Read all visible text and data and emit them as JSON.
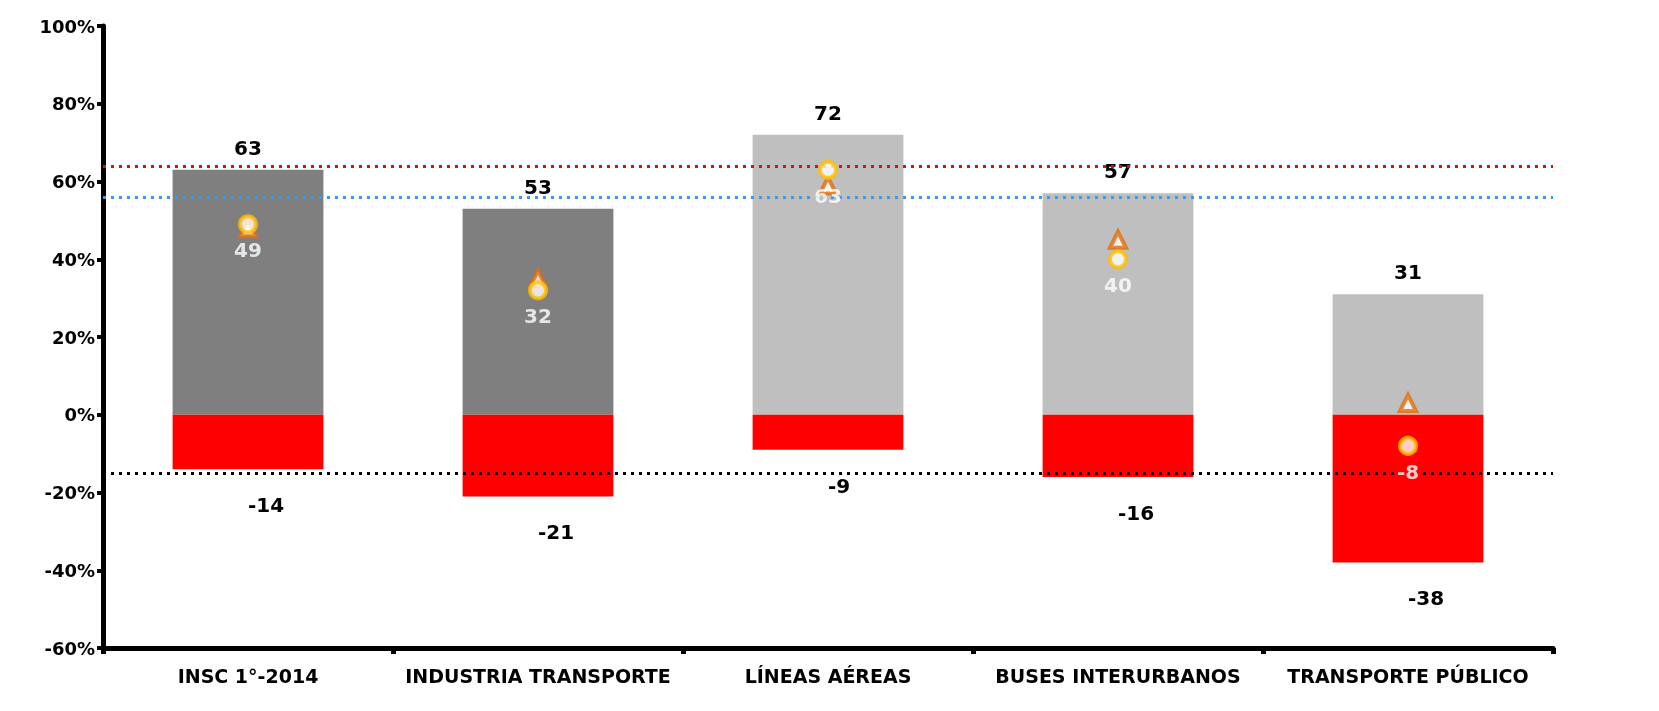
{
  "chart_data": {
    "type": "bar",
    "stacked": true,
    "categories": [
      "INSC 1°-2014",
      "INDUSTRIA TRANSPORTE",
      "LÍNEAS AÉREAS",
      "BUSES INTERURBANOS",
      "TRANSPORTE PÚBLICO"
    ],
    "series": [
      {
        "colors": [
          "#7f7f7f",
          "#7f7f7f",
          "#bfbfbf",
          "#bfbfbf",
          "#bfbfbf"
        ],
        "values": [
          63,
          53,
          72,
          57,
          31
        ],
        "value_labels": [
          "63",
          "53",
          "72",
          "57",
          "31"
        ]
      },
      {
        "color": "#ff0000",
        "values": [
          -14,
          -21,
          -9,
          -16,
          -38
        ],
        "value_labels": [
          "-14",
          "-21",
          "-9",
          "-16",
          "-38"
        ]
      },
      {
        "type": "scatter",
        "marker": "triangle",
        "color": "#e46c0a",
        "values": [
          48,
          35,
          59,
          45,
          3
        ]
      },
      {
        "type": "scatter",
        "marker": "circle",
        "color": "#ffc000",
        "values": [
          49,
          32,
          63,
          40,
          -8
        ],
        "value_labels": [
          "49",
          "32",
          "63",
          "40",
          "-8"
        ]
      }
    ],
    "ylim": [
      -60,
      100
    ],
    "yticks": [
      {
        "value": -60,
        "label": "-60%"
      },
      {
        "value": -40,
        "label": "-40%"
      },
      {
        "value": -20,
        "label": "-20%"
      },
      {
        "value": 0,
        "label": "0%"
      },
      {
        "value": 20,
        "label": "20%"
      },
      {
        "value": 40,
        "label": "40%"
      },
      {
        "value": 60,
        "label": "60%"
      },
      {
        "value": 80,
        "label": "80%"
      },
      {
        "value": 100,
        "label": "100%"
      }
    ],
    "ref_lines": [
      {
        "axis": "y",
        "value": 64,
        "color": "#ff0000",
        "line_style": "dotted"
      },
      {
        "axis": "y",
        "value": 56,
        "color": "#3399ff",
        "line_style": "dotted"
      },
      {
        "axis": "y",
        "value": -15,
        "color": "#000000",
        "line_style": "dotted"
      }
    ],
    "grid": false
  }
}
